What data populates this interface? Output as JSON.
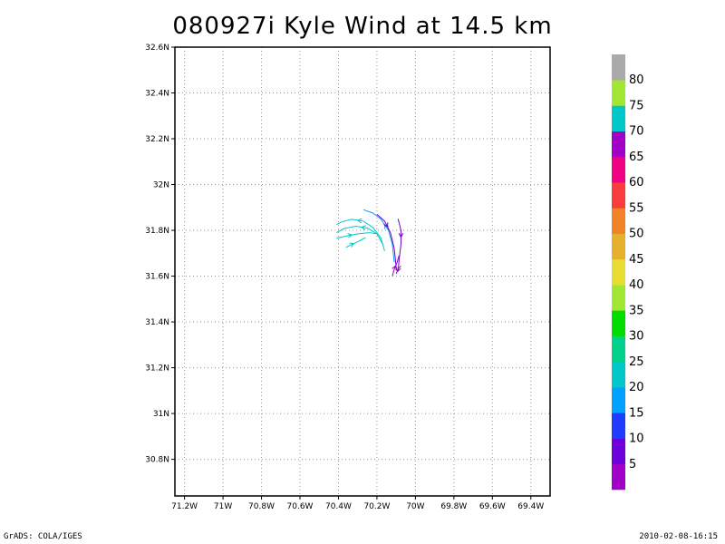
{
  "title": "080927i Kyle Wind at 14.5 km",
  "footer": {
    "left": "GrADS: COLA/IGES",
    "right": "2010-02-08-16:15"
  },
  "map": {
    "lon_range": [
      -71.25,
      -69.3
    ],
    "lat_range": [
      30.64,
      32.6
    ],
    "lon_ticks": [
      {
        "value": -71.2,
        "label": "71.2W"
      },
      {
        "value": -71.0,
        "label": "71W"
      },
      {
        "value": -70.8,
        "label": "70.8W"
      },
      {
        "value": -70.6,
        "label": "70.6W"
      },
      {
        "value": -70.4,
        "label": "70.4W"
      },
      {
        "value": -70.2,
        "label": "70.2W"
      },
      {
        "value": -70.0,
        "label": "70W"
      },
      {
        "value": -69.8,
        "label": "69.8W"
      },
      {
        "value": -69.6,
        "label": "69.6W"
      },
      {
        "value": -69.4,
        "label": "69.4W"
      }
    ],
    "lat_ticks": [
      {
        "value": 30.8,
        "label": "30.8N"
      },
      {
        "value": 31.0,
        "label": "31N"
      },
      {
        "value": 31.2,
        "label": "31.2N"
      },
      {
        "value": 31.4,
        "label": "31.4N"
      },
      {
        "value": 31.6,
        "label": "31.6N"
      },
      {
        "value": 31.8,
        "label": "31.8N"
      },
      {
        "value": 32.0,
        "label": "32N"
      },
      {
        "value": 32.2,
        "label": "32.2N"
      },
      {
        "value": 32.4,
        "label": "32.4N"
      },
      {
        "value": 32.6,
        "label": "32.6N"
      }
    ],
    "grid": true,
    "streamlines": [
      {
        "color": "#00c8c8",
        "arrow_dir": 1,
        "points": [
          [
            -70.36,
            31.725
          ],
          [
            -70.34,
            31.735
          ],
          [
            -70.3,
            31.75
          ],
          [
            -70.26,
            31.768
          ]
        ]
      },
      {
        "color": "#00c8c8",
        "arrow_dir": 1,
        "points": [
          [
            -70.41,
            31.765
          ],
          [
            -70.36,
            31.775
          ],
          [
            -70.3,
            31.785
          ],
          [
            -70.24,
            31.79
          ],
          [
            -70.2,
            31.785
          ]
        ]
      },
      {
        "color": "#00c8c8",
        "arrow_dir": -1,
        "points": [
          [
            -70.41,
            31.79
          ],
          [
            -70.37,
            31.808
          ],
          [
            -70.31,
            31.818
          ],
          [
            -70.25,
            31.81
          ],
          [
            -70.2,
            31.785
          ],
          [
            -70.17,
            31.74
          ]
        ]
      },
      {
        "color": "#00c8c8",
        "arrow_dir": -1,
        "points": [
          [
            -70.41,
            31.825
          ],
          [
            -70.38,
            31.838
          ],
          [
            -70.33,
            31.848
          ],
          [
            -70.27,
            31.84
          ],
          [
            -70.22,
            31.812
          ],
          [
            -70.18,
            31.768
          ],
          [
            -70.16,
            31.71
          ]
        ]
      },
      {
        "color": "#1e96ff",
        "arrow_dir": -1,
        "points": [
          [
            -70.27,
            31.89
          ],
          [
            -70.22,
            31.875
          ],
          [
            -70.18,
            31.85
          ],
          [
            -70.14,
            31.8
          ],
          [
            -70.12,
            31.74
          ],
          [
            -70.11,
            31.66
          ]
        ]
      },
      {
        "color": "#6e00c8",
        "arrow_dir": 1,
        "points": [
          [
            -70.2,
            31.87
          ],
          [
            -70.16,
            31.84
          ],
          [
            -70.13,
            31.79
          ],
          [
            -70.11,
            31.72
          ],
          [
            -70.1,
            31.64
          ]
        ]
      },
      {
        "color": "#6e00c8",
        "arrow_dir": 1,
        "points": [
          [
            -70.09,
            31.85
          ],
          [
            -70.075,
            31.8
          ],
          [
            -70.075,
            31.74
          ],
          [
            -70.085,
            31.67
          ],
          [
            -70.09,
            31.62
          ]
        ]
      },
      {
        "color": "#a000c8",
        "arrow_dir": 1,
        "points": [
          [
            -70.12,
            31.6
          ],
          [
            -70.11,
            31.63
          ],
          [
            -70.095,
            31.66
          ],
          [
            -70.085,
            31.69
          ]
        ]
      },
      {
        "color": "#a000c8",
        "arrow_dir": -1,
        "points": [
          [
            -70.1,
            31.61
          ],
          [
            -70.09,
            31.63
          ],
          [
            -70.075,
            31.645
          ]
        ]
      }
    ]
  },
  "colorbar": {
    "colors": [
      "#a000c8",
      "#6e00dc",
      "#1e3cff",
      "#00a0ff",
      "#00c8c8",
      "#00d28c",
      "#00dc00",
      "#a0e632",
      "#e6dc32",
      "#e6af2d",
      "#f08228",
      "#fa3c3c",
      "#f00082",
      "#a000c8",
      "#00c8c8",
      "#a0e632",
      "#aaaaaa"
    ],
    "labels": [
      "5",
      "10",
      "15",
      "20",
      "25",
      "30",
      "35",
      "40",
      "45",
      "50",
      "55",
      "60",
      "65",
      "70",
      "75",
      "80"
    ]
  }
}
